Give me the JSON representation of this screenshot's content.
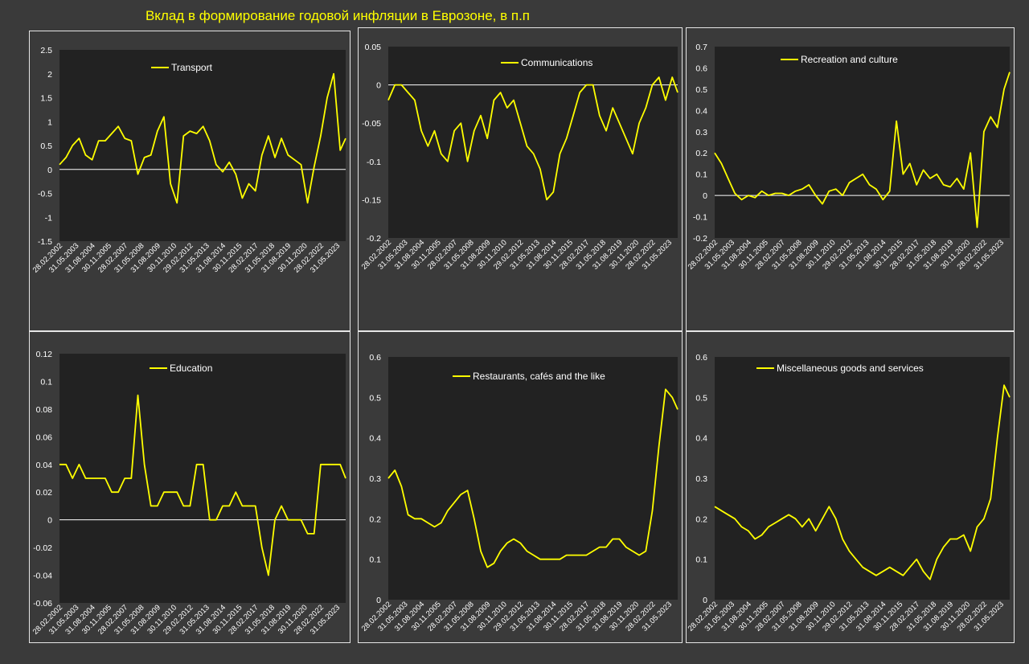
{
  "title": "Вклад в формирование годовой инфляции в Еврозоне, в п.п",
  "colors": {
    "background": "#3a3a3a",
    "panel": "#222222",
    "panel_border": "#e6e6e6",
    "line": "#ffff00",
    "zero_line": "#ffffff",
    "tick_text": "#ffffff",
    "title": "#ffff00"
  },
  "date_labels": [
    "28.02.2002",
    "31.05.2003",
    "31.08.2004",
    "30.11.2005",
    "28.02.2007",
    "31.05.2008",
    "31.08.2009",
    "30.11.2010",
    "29.02.2012",
    "31.05.2013",
    "31.08.2014",
    "30.11.2015",
    "28.02.2017",
    "31.05.2018",
    "31.08.2019",
    "30.11.2020",
    "28.02.2022",
    "31.05.2023"
  ],
  "chart_data": [
    {
      "type": "line",
      "legend": "Transport",
      "ylim": [
        -1.5,
        2.5
      ],
      "yticks": [
        "2.5",
        "2",
        "1.5",
        "1",
        "0.5",
        "0",
        "-0.5",
        "-1",
        "-1.5"
      ],
      "x": [
        "2002-02",
        "2002-08",
        "2003-02",
        "2003-08",
        "2004-02",
        "2004-08",
        "2005-02",
        "2005-08",
        "2006-02",
        "2006-08",
        "2007-02",
        "2007-08",
        "2008-02",
        "2008-08",
        "2009-02",
        "2009-08",
        "2010-02",
        "2010-08",
        "2011-02",
        "2011-08",
        "2012-02",
        "2012-08",
        "2013-02",
        "2013-08",
        "2014-02",
        "2014-08",
        "2015-02",
        "2015-08",
        "2016-02",
        "2016-08",
        "2017-02",
        "2017-08",
        "2018-02",
        "2018-08",
        "2019-02",
        "2019-08",
        "2020-02",
        "2020-08",
        "2021-02",
        "2021-08",
        "2022-02",
        "2022-08",
        "2023-02",
        "2023-08",
        "2024-01"
      ],
      "y": [
        0.1,
        0.25,
        0.5,
        0.65,
        0.3,
        0.2,
        0.6,
        0.6,
        0.75,
        0.9,
        0.65,
        0.6,
        -0.1,
        0.25,
        0.3,
        0.8,
        1.1,
        -0.3,
        -0.7,
        0.7,
        0.8,
        0.75,
        0.9,
        0.6,
        0.1,
        -0.05,
        0.15,
        -0.1,
        -0.6,
        -0.3,
        -0.45,
        0.3,
        0.7,
        0.25,
        0.65,
        0.3,
        0.2,
        0.1,
        -0.7,
        0.05,
        0.7,
        1.5,
        2.0,
        0.4,
        0.65
      ]
    },
    {
      "type": "line",
      "legend": "Communications",
      "ylim": [
        -0.2,
        0.05
      ],
      "yticks": [
        "0.05",
        "0",
        "-0.05",
        "-0.1",
        "-0.15",
        "-0.2"
      ],
      "x": [
        "2002-02",
        "2002-08",
        "2003-02",
        "2003-08",
        "2004-02",
        "2004-08",
        "2005-02",
        "2005-08",
        "2006-02",
        "2006-08",
        "2007-02",
        "2007-08",
        "2008-02",
        "2008-08",
        "2009-02",
        "2009-08",
        "2010-02",
        "2010-08",
        "2011-02",
        "2011-08",
        "2012-02",
        "2012-08",
        "2013-02",
        "2013-08",
        "2014-02",
        "2014-08",
        "2015-02",
        "2015-08",
        "2016-02",
        "2016-08",
        "2017-02",
        "2017-08",
        "2018-02",
        "2018-08",
        "2019-02",
        "2019-08",
        "2020-02",
        "2020-08",
        "2021-02",
        "2021-08",
        "2022-02",
        "2022-08",
        "2023-02",
        "2023-08",
        "2024-01"
      ],
      "y": [
        -0.02,
        0,
        0,
        -0.01,
        -0.02,
        -0.06,
        -0.08,
        -0.06,
        -0.09,
        -0.1,
        -0.06,
        -0.05,
        -0.1,
        -0.06,
        -0.04,
        -0.07,
        -0.02,
        -0.01,
        -0.03,
        -0.02,
        -0.05,
        -0.08,
        -0.09,
        -0.11,
        -0.15,
        -0.14,
        -0.09,
        -0.07,
        -0.04,
        -0.01,
        0,
        0,
        -0.04,
        -0.06,
        -0.03,
        -0.05,
        -0.07,
        -0.09,
        -0.05,
        -0.03,
        0,
        0.01,
        -0.02,
        0.01,
        -0.01
      ]
    },
    {
      "type": "line",
      "legend": "Recreation and culture",
      "ylim": [
        -0.2,
        0.7
      ],
      "yticks": [
        "0.7",
        "0.6",
        "0.5",
        "0.4",
        "0.3",
        "0.2",
        "0.1",
        "0",
        "-0.1",
        "-0.2"
      ],
      "x": [
        "2002-02",
        "2002-08",
        "2003-02",
        "2003-08",
        "2004-02",
        "2004-08",
        "2005-02",
        "2005-08",
        "2006-02",
        "2006-08",
        "2007-02",
        "2007-08",
        "2008-02",
        "2008-08",
        "2009-02",
        "2009-08",
        "2010-02",
        "2010-08",
        "2011-02",
        "2011-08",
        "2012-02",
        "2012-08",
        "2013-02",
        "2013-08",
        "2014-02",
        "2014-08",
        "2015-02",
        "2015-08",
        "2016-02",
        "2016-08",
        "2017-02",
        "2017-08",
        "2018-02",
        "2018-08",
        "2019-02",
        "2019-08",
        "2020-02",
        "2020-08",
        "2021-02",
        "2021-08",
        "2022-02",
        "2022-08",
        "2023-02",
        "2023-08",
        "2024-01"
      ],
      "y": [
        0.2,
        0.15,
        0.08,
        0.01,
        -0.02,
        0,
        -0.01,
        0.02,
        0,
        0.01,
        0.01,
        0,
        0.02,
        0.03,
        0.05,
        0,
        -0.04,
        0.02,
        0.03,
        0,
        0.06,
        0.08,
        0.1,
        0.05,
        0.03,
        -0.02,
        0.02,
        0.35,
        0.1,
        0.15,
        0.05,
        0.12,
        0.08,
        0.1,
        0.05,
        0.04,
        0.08,
        0.03,
        0.2,
        -0.15,
        0.3,
        0.37,
        0.32,
        0.5,
        0.58
      ]
    },
    {
      "type": "line",
      "legend": "Education",
      "ylim": [
        -0.06,
        0.12
      ],
      "yticks": [
        "0.12",
        "0.1",
        "0.08",
        "0.06",
        "0.04",
        "0.02",
        "0",
        "-0.02",
        "-0.04",
        "-0.06"
      ],
      "x": [
        "2002-02",
        "2002-08",
        "2003-02",
        "2003-08",
        "2004-02",
        "2004-08",
        "2005-02",
        "2005-08",
        "2006-02",
        "2006-08",
        "2007-02",
        "2007-08",
        "2008-02",
        "2008-08",
        "2009-02",
        "2009-08",
        "2010-02",
        "2010-08",
        "2011-02",
        "2011-08",
        "2012-02",
        "2012-08",
        "2013-02",
        "2013-08",
        "2014-02",
        "2014-08",
        "2015-02",
        "2015-08",
        "2016-02",
        "2016-08",
        "2017-02",
        "2017-08",
        "2018-02",
        "2018-08",
        "2019-02",
        "2019-08",
        "2020-02",
        "2020-08",
        "2021-02",
        "2021-08",
        "2022-02",
        "2022-08",
        "2023-02",
        "2023-08",
        "2024-01"
      ],
      "y": [
        0.04,
        0.04,
        0.03,
        0.04,
        0.03,
        0.03,
        0.03,
        0.03,
        0.02,
        0.02,
        0.03,
        0.03,
        0.09,
        0.04,
        0.01,
        0.01,
        0.02,
        0.02,
        0.02,
        0.01,
        0.01,
        0.04,
        0.04,
        0,
        0,
        0.01,
        0.01,
        0.02,
        0.01,
        0.01,
        0.01,
        -0.02,
        -0.04,
        0,
        0.01,
        0,
        0,
        0,
        -0.01,
        -0.01,
        0.04,
        0.04,
        0.04,
        0.04,
        0.03
      ]
    },
    {
      "type": "line",
      "legend": "Restaurants, cafés and the like",
      "ylim": [
        0,
        0.6
      ],
      "yticks": [
        "0.6",
        "0.5",
        "0.4",
        "0.3",
        "0.2",
        "0.1",
        "0"
      ],
      "x": [
        "2002-02",
        "2002-08",
        "2003-02",
        "2003-08",
        "2004-02",
        "2004-08",
        "2005-02",
        "2005-08",
        "2006-02",
        "2006-08",
        "2007-02",
        "2007-08",
        "2008-02",
        "2008-08",
        "2009-02",
        "2009-08",
        "2010-02",
        "2010-08",
        "2011-02",
        "2011-08",
        "2012-02",
        "2012-08",
        "2013-02",
        "2013-08",
        "2014-02",
        "2014-08",
        "2015-02",
        "2015-08",
        "2016-02",
        "2016-08",
        "2017-02",
        "2017-08",
        "2018-02",
        "2018-08",
        "2019-02",
        "2019-08",
        "2020-02",
        "2020-08",
        "2021-02",
        "2021-08",
        "2022-02",
        "2022-08",
        "2023-02",
        "2023-08",
        "2024-01"
      ],
      "y": [
        0.3,
        0.32,
        0.28,
        0.21,
        0.2,
        0.2,
        0.19,
        0.18,
        0.19,
        0.22,
        0.24,
        0.26,
        0.27,
        0.2,
        0.12,
        0.08,
        0.09,
        0.12,
        0.14,
        0.15,
        0.14,
        0.12,
        0.11,
        0.1,
        0.1,
        0.1,
        0.1,
        0.11,
        0.11,
        0.11,
        0.11,
        0.12,
        0.13,
        0.13,
        0.15,
        0.15,
        0.13,
        0.12,
        0.11,
        0.12,
        0.22,
        0.38,
        0.52,
        0.5,
        0.47
      ]
    },
    {
      "type": "line",
      "legend": "Miscellaneous goods and services",
      "ylim": [
        0,
        0.6
      ],
      "yticks": [
        "0.6",
        "0.5",
        "0.4",
        "0.3",
        "0.2",
        "0.1",
        "0"
      ],
      "x": [
        "2002-02",
        "2002-08",
        "2003-02",
        "2003-08",
        "2004-02",
        "2004-08",
        "2005-02",
        "2005-08",
        "2006-02",
        "2006-08",
        "2007-02",
        "2007-08",
        "2008-02",
        "2008-08",
        "2009-02",
        "2009-08",
        "2010-02",
        "2010-08",
        "2011-02",
        "2011-08",
        "2012-02",
        "2012-08",
        "2013-02",
        "2013-08",
        "2014-02",
        "2014-08",
        "2015-02",
        "2015-08",
        "2016-02",
        "2016-08",
        "2017-02",
        "2017-08",
        "2018-02",
        "2018-08",
        "2019-02",
        "2019-08",
        "2020-02",
        "2020-08",
        "2021-02",
        "2021-08",
        "2022-02",
        "2022-08",
        "2023-02",
        "2023-08",
        "2024-01"
      ],
      "y": [
        0.23,
        0.22,
        0.21,
        0.2,
        0.18,
        0.17,
        0.15,
        0.16,
        0.18,
        0.19,
        0.2,
        0.21,
        0.2,
        0.18,
        0.2,
        0.17,
        0.2,
        0.23,
        0.2,
        0.15,
        0.12,
        0.1,
        0.08,
        0.07,
        0.06,
        0.07,
        0.08,
        0.07,
        0.06,
        0.08,
        0.1,
        0.07,
        0.05,
        0.1,
        0.13,
        0.15,
        0.15,
        0.16,
        0.12,
        0.18,
        0.2,
        0.25,
        0.4,
        0.53,
        0.5
      ]
    }
  ]
}
